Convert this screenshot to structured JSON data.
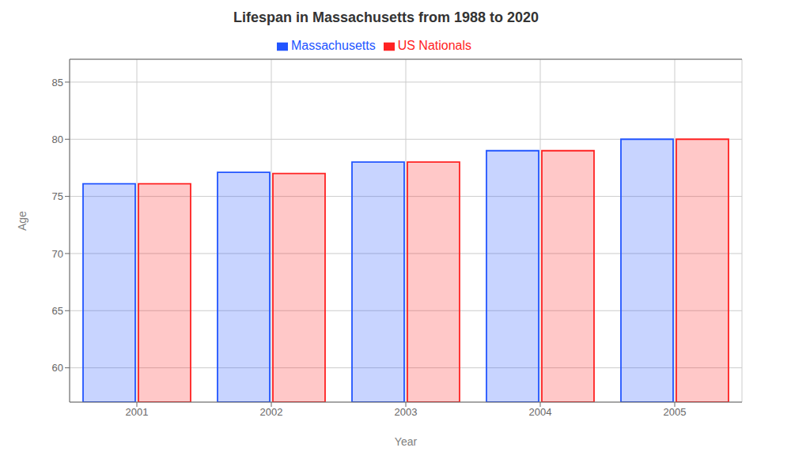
{
  "chart_data": {
    "type": "bar",
    "title": "Lifespan in Massachusetts from 1988 to 2020",
    "xlabel": "Year",
    "ylabel": "Age",
    "categories": [
      "2001",
      "2002",
      "2003",
      "2004",
      "2005"
    ],
    "series": [
      {
        "name": "Massachusetts",
        "color": "#2255ff",
        "values": [
          76.1,
          77.1,
          78.0,
          79.0,
          80.0
        ]
      },
      {
        "name": "US Nationals",
        "color": "#ff2222",
        "values": [
          76.1,
          77.0,
          78.0,
          79.0,
          80.0
        ]
      }
    ],
    "ylim": [
      57,
      87
    ],
    "yticks": [
      60,
      65,
      70,
      75,
      80,
      85
    ],
    "grid": true,
    "legend": "top"
  }
}
